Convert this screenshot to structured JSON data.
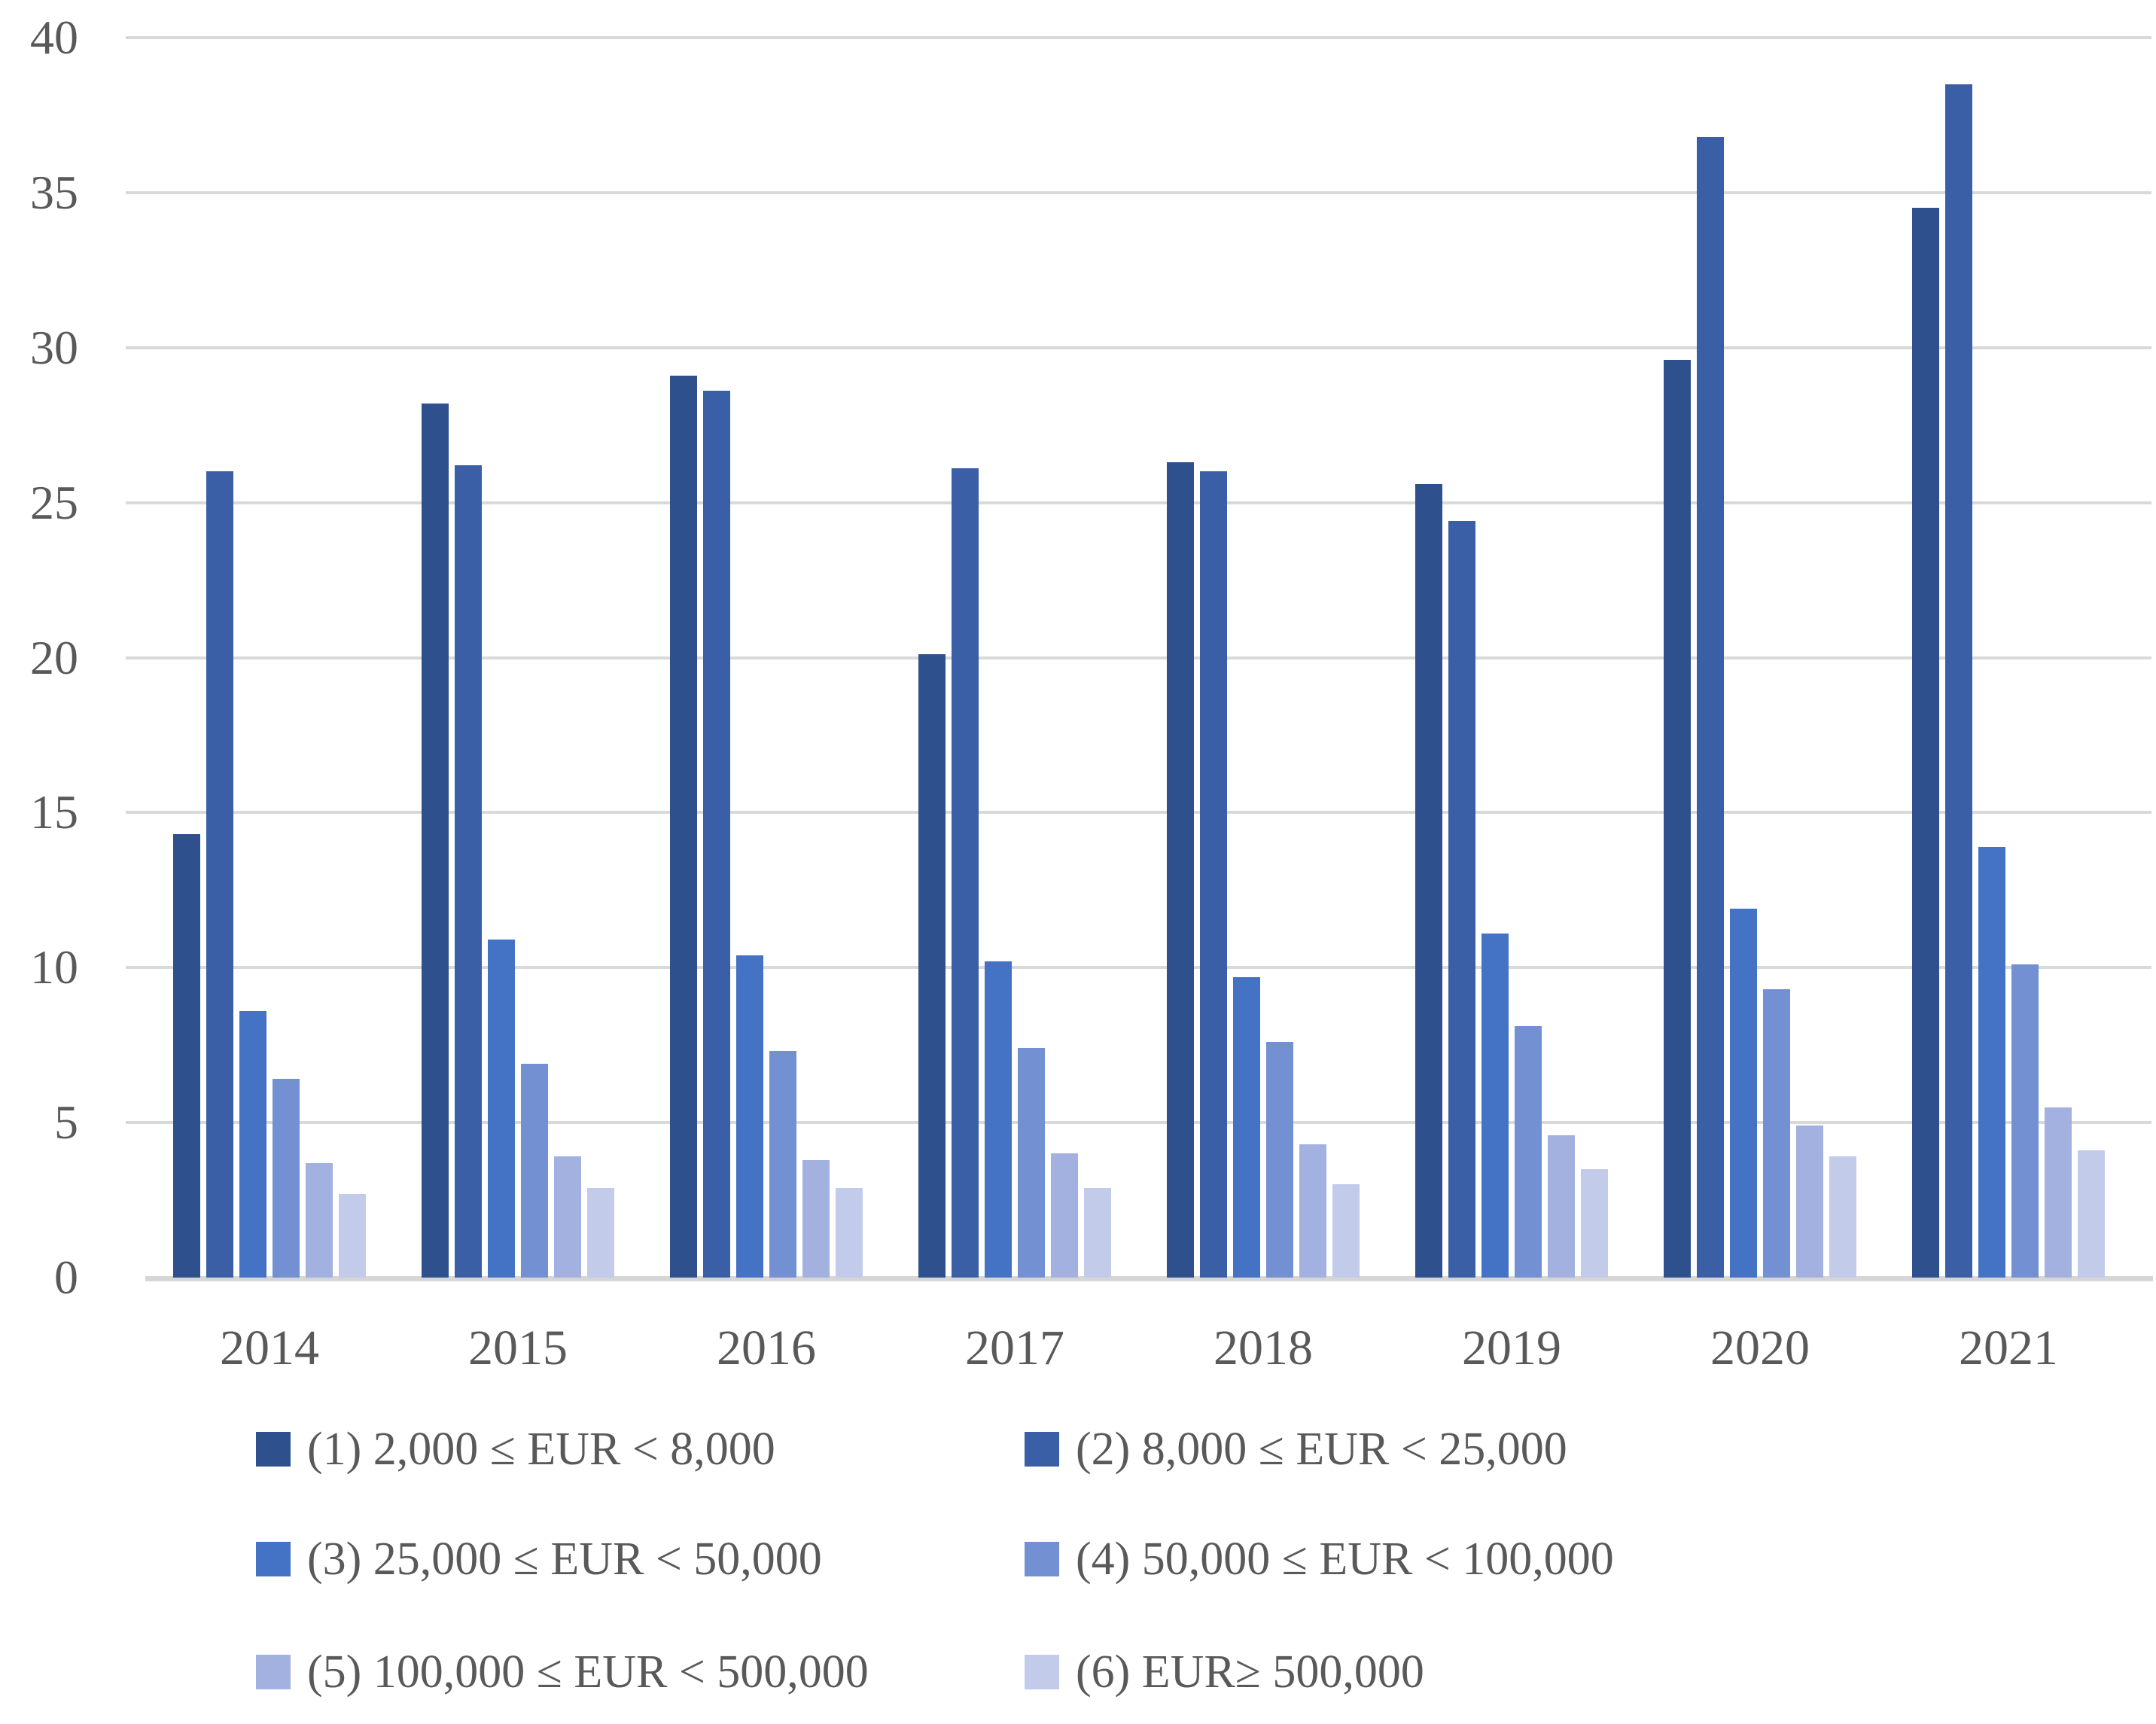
{
  "chart_data": {
    "type": "bar",
    "title": "",
    "xlabel": "",
    "ylabel": "",
    "categories": [
      "2014",
      "2015",
      "2016",
      "2017",
      "2018",
      "2019",
      "2020",
      "2021"
    ],
    "series": [
      {
        "name": "(1) 2,000 ≤ EUR < 8,000",
        "color": "#2e508c",
        "values": [
          14.3,
          28.2,
          29.1,
          20.1,
          26.3,
          25.6,
          29.6,
          34.5
        ]
      },
      {
        "name": "(2) 8,000 ≤ EUR < 25,000",
        "color": "#3a5fa6",
        "values": [
          26.0,
          26.2,
          28.6,
          26.1,
          26.0,
          24.4,
          36.8,
          38.5
        ]
      },
      {
        "name": "(3) 25,000 ≤ EUR < 50,000",
        "color": "#4472c4",
        "values": [
          8.6,
          10.9,
          10.4,
          10.2,
          9.7,
          11.1,
          11.9,
          13.9
        ]
      },
      {
        "name": "(4) 50,000 ≤ EUR < 100,000",
        "color": "#7390d2",
        "values": [
          6.4,
          6.9,
          7.3,
          7.4,
          7.6,
          8.1,
          9.3,
          10.1
        ]
      },
      {
        "name": "(5) 100,000 ≤ EUR < 500,000",
        "color": "#a2b1df",
        "values": [
          3.7,
          3.9,
          3.8,
          4.0,
          4.3,
          4.6,
          4.9,
          5.5
        ]
      },
      {
        "name": "(6) EUR≥ 500,000",
        "color": "#c2ccea",
        "values": [
          2.7,
          2.9,
          2.9,
          2.9,
          3.0,
          3.5,
          3.9,
          4.1
        ]
      }
    ],
    "ylim": [
      0,
      40
    ],
    "yticks": [
      0,
      5,
      10,
      15,
      20,
      25,
      30,
      35,
      40
    ],
    "grid": true,
    "legend_position": "bottom",
    "colors": {
      "text": "#595959",
      "gridline": "#d9d9d9",
      "axisline": "#d6d6d6",
      "background": "#ffffff"
    }
  }
}
